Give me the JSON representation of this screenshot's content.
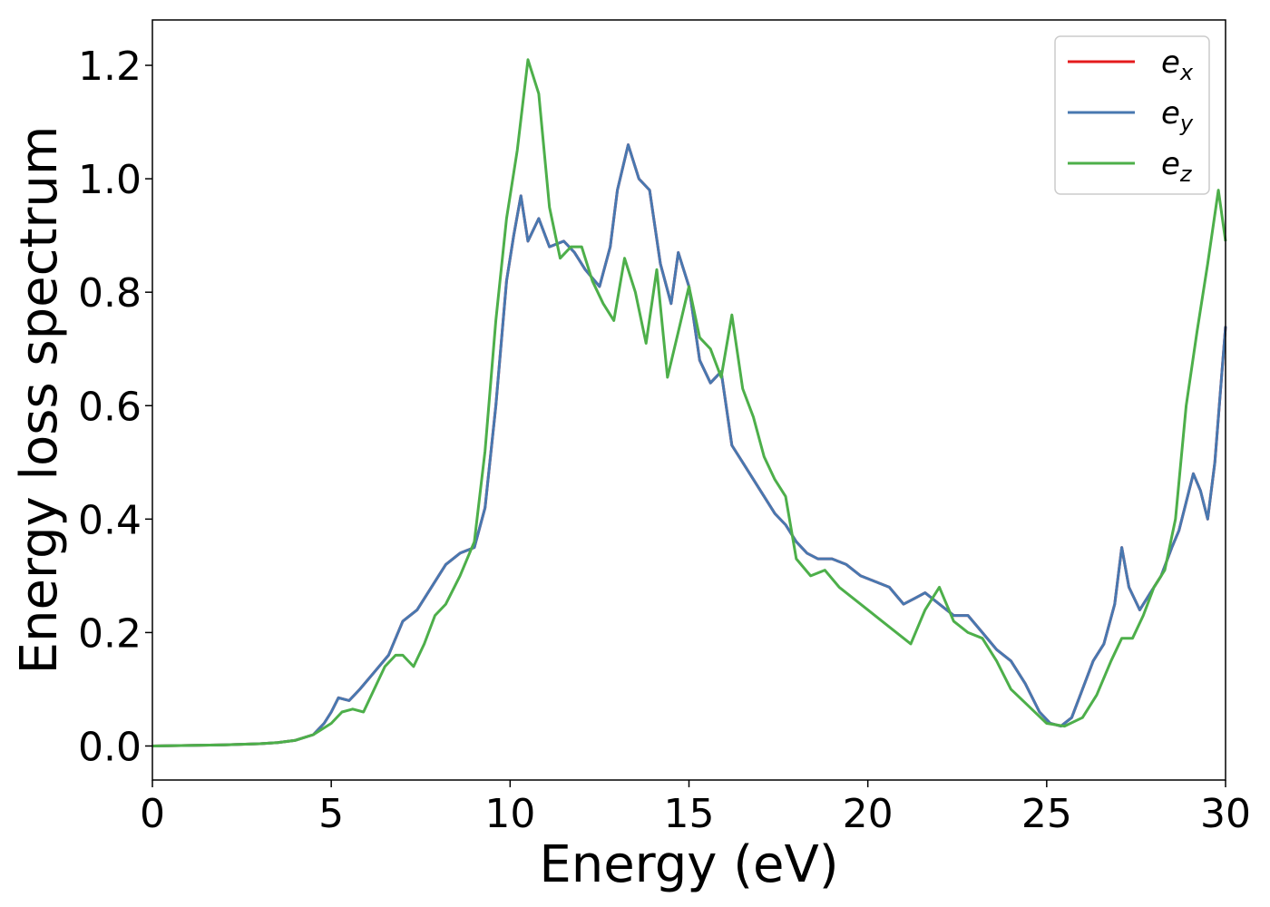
{
  "chart_data": {
    "type": "line",
    "xlabel": "Energy (eV)",
    "ylabel": "Energy loss spectrum",
    "xlim": [
      0,
      30
    ],
    "ylim": [
      -0.06,
      1.28
    ],
    "x_ticks": [
      "0",
      "5",
      "10",
      "15",
      "20",
      "25",
      "30"
    ],
    "y_ticks": [
      "0.0",
      "0.2",
      "0.4",
      "0.6",
      "0.8",
      "1.0",
      "1.2"
    ],
    "grid": false,
    "legend_position": "top-right",
    "series": [
      {
        "name": "e_x",
        "legend_base": "e",
        "legend_sub": "x",
        "color": "#e41a1c",
        "x": [
          0,
          1,
          2,
          3,
          3.5,
          4,
          4.5,
          4.8,
          5,
          5.2,
          5.5,
          5.8,
          6.2,
          6.6,
          7,
          7.4,
          7.8,
          8.2,
          8.6,
          9,
          9.3,
          9.6,
          9.9,
          10.1,
          10.3,
          10.5,
          10.8,
          11.1,
          11.5,
          11.8,
          12.1,
          12.5,
          12.8,
          13.0,
          13.3,
          13.6,
          13.9,
          14.2,
          14.5,
          14.7,
          15.0,
          15.3,
          15.6,
          15.9,
          16.2,
          16.5,
          16.8,
          17.1,
          17.4,
          17.7,
          18.0,
          18.3,
          18.6,
          19.0,
          19.4,
          19.8,
          20.2,
          20.6,
          21.0,
          21.3,
          21.6,
          22.0,
          22.4,
          22.8,
          23.2,
          23.6,
          24.0,
          24.4,
          24.8,
          25.1,
          25.4,
          25.7,
          26.0,
          26.3,
          26.6,
          26.9,
          27.1,
          27.3,
          27.6,
          27.9,
          28.2,
          28.5,
          28.7,
          28.9,
          29.1,
          29.3,
          29.5,
          29.7,
          30.0
        ],
        "y": [
          0,
          0.001,
          0.002,
          0.004,
          0.006,
          0.01,
          0.02,
          0.04,
          0.06,
          0.085,
          0.08,
          0.1,
          0.13,
          0.16,
          0.22,
          0.24,
          0.28,
          0.32,
          0.34,
          0.35,
          0.42,
          0.6,
          0.82,
          0.9,
          0.97,
          0.89,
          0.93,
          0.88,
          0.89,
          0.87,
          0.84,
          0.81,
          0.88,
          0.98,
          1.06,
          1.0,
          0.98,
          0.85,
          0.78,
          0.87,
          0.81,
          0.68,
          0.64,
          0.66,
          0.53,
          0.5,
          0.47,
          0.44,
          0.41,
          0.39,
          0.36,
          0.34,
          0.33,
          0.33,
          0.32,
          0.3,
          0.29,
          0.28,
          0.25,
          0.26,
          0.27,
          0.25,
          0.23,
          0.23,
          0.2,
          0.17,
          0.15,
          0.11,
          0.06,
          0.04,
          0.035,
          0.05,
          0.1,
          0.15,
          0.18,
          0.25,
          0.35,
          0.28,
          0.24,
          0.27,
          0.3,
          0.35,
          0.38,
          0.43,
          0.48,
          0.45,
          0.4,
          0.5,
          0.74
        ]
      },
      {
        "name": "e_y",
        "legend_base": "e",
        "legend_sub": "y",
        "color": "#4878b0",
        "x": [
          0,
          1,
          2,
          3,
          3.5,
          4,
          4.5,
          4.8,
          5,
          5.2,
          5.5,
          5.8,
          6.2,
          6.6,
          7,
          7.4,
          7.8,
          8.2,
          8.6,
          9,
          9.3,
          9.6,
          9.9,
          10.1,
          10.3,
          10.5,
          10.8,
          11.1,
          11.5,
          11.8,
          12.1,
          12.5,
          12.8,
          13.0,
          13.3,
          13.6,
          13.9,
          14.2,
          14.5,
          14.7,
          15.0,
          15.3,
          15.6,
          15.9,
          16.2,
          16.5,
          16.8,
          17.1,
          17.4,
          17.7,
          18.0,
          18.3,
          18.6,
          19.0,
          19.4,
          19.8,
          20.2,
          20.6,
          21.0,
          21.3,
          21.6,
          22.0,
          22.4,
          22.8,
          23.2,
          23.6,
          24.0,
          24.4,
          24.8,
          25.1,
          25.4,
          25.7,
          26.0,
          26.3,
          26.6,
          26.9,
          27.1,
          27.3,
          27.6,
          27.9,
          28.2,
          28.5,
          28.7,
          28.9,
          29.1,
          29.3,
          29.5,
          29.7,
          30.0
        ],
        "y": [
          0,
          0.001,
          0.002,
          0.004,
          0.006,
          0.01,
          0.02,
          0.04,
          0.06,
          0.085,
          0.08,
          0.1,
          0.13,
          0.16,
          0.22,
          0.24,
          0.28,
          0.32,
          0.34,
          0.35,
          0.42,
          0.6,
          0.82,
          0.9,
          0.97,
          0.89,
          0.93,
          0.88,
          0.89,
          0.87,
          0.84,
          0.81,
          0.88,
          0.98,
          1.06,
          1.0,
          0.98,
          0.85,
          0.78,
          0.87,
          0.81,
          0.68,
          0.64,
          0.66,
          0.53,
          0.5,
          0.47,
          0.44,
          0.41,
          0.39,
          0.36,
          0.34,
          0.33,
          0.33,
          0.32,
          0.3,
          0.29,
          0.28,
          0.25,
          0.26,
          0.27,
          0.25,
          0.23,
          0.23,
          0.2,
          0.17,
          0.15,
          0.11,
          0.06,
          0.04,
          0.035,
          0.05,
          0.1,
          0.15,
          0.18,
          0.25,
          0.35,
          0.28,
          0.24,
          0.27,
          0.3,
          0.35,
          0.38,
          0.43,
          0.48,
          0.45,
          0.4,
          0.5,
          0.74
        ]
      },
      {
        "name": "e_z",
        "legend_base": "e",
        "legend_sub": "z",
        "color": "#4daf4a",
        "x": [
          0,
          1,
          2,
          3,
          3.5,
          4,
          4.5,
          5,
          5.3,
          5.6,
          5.9,
          6.2,
          6.5,
          6.8,
          7.0,
          7.3,
          7.6,
          7.9,
          8.2,
          8.6,
          9.0,
          9.3,
          9.6,
          9.9,
          10.2,
          10.5,
          10.8,
          11.1,
          11.4,
          11.7,
          12.0,
          12.3,
          12.6,
          12.9,
          13.2,
          13.5,
          13.8,
          14.1,
          14.4,
          14.7,
          15.0,
          15.3,
          15.6,
          15.9,
          16.2,
          16.5,
          16.8,
          17.1,
          17.4,
          17.7,
          18.0,
          18.4,
          18.8,
          19.2,
          19.6,
          20.0,
          20.4,
          20.8,
          21.2,
          21.6,
          22.0,
          22.4,
          22.8,
          23.2,
          23.6,
          24.0,
          24.5,
          25.0,
          25.5,
          26.0,
          26.4,
          26.8,
          27.1,
          27.4,
          27.7,
          28.0,
          28.3,
          28.6,
          28.9,
          29.2,
          29.5,
          29.8,
          30.0
        ],
        "y": [
          0,
          0.001,
          0.002,
          0.004,
          0.006,
          0.01,
          0.02,
          0.04,
          0.06,
          0.065,
          0.06,
          0.1,
          0.14,
          0.16,
          0.16,
          0.14,
          0.18,
          0.23,
          0.25,
          0.3,
          0.36,
          0.52,
          0.75,
          0.93,
          1.05,
          1.21,
          1.15,
          0.95,
          0.86,
          0.88,
          0.88,
          0.82,
          0.78,
          0.75,
          0.86,
          0.8,
          0.71,
          0.84,
          0.65,
          0.73,
          0.81,
          0.72,
          0.7,
          0.65,
          0.76,
          0.63,
          0.58,
          0.51,
          0.47,
          0.44,
          0.33,
          0.3,
          0.31,
          0.28,
          0.26,
          0.24,
          0.22,
          0.2,
          0.18,
          0.24,
          0.28,
          0.22,
          0.2,
          0.19,
          0.15,
          0.1,
          0.07,
          0.04,
          0.035,
          0.05,
          0.09,
          0.15,
          0.19,
          0.19,
          0.23,
          0.28,
          0.31,
          0.4,
          0.6,
          0.73,
          0.85,
          0.98,
          0.89
        ]
      }
    ]
  }
}
